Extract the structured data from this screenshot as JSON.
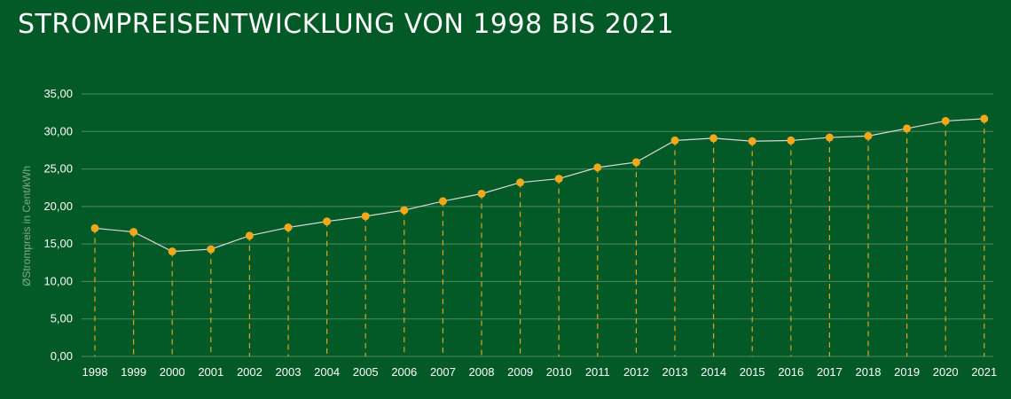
{
  "chart_data": {
    "type": "line",
    "title": "STROMPREISENTWICKLUNG VON 1998 BIS 2021",
    "ylabel": "ØStrompreis in Cent/kWh",
    "xlabel": "",
    "ylim": [
      0,
      35
    ],
    "y_ticks": [
      "0,00",
      "5,00",
      "10,00",
      "15,00",
      "20,00",
      "25,00",
      "30,00",
      "35,00"
    ],
    "y_tick_values": [
      0,
      5,
      10,
      15,
      20,
      25,
      30,
      35
    ],
    "categories": [
      "1998",
      "1999",
      "2000",
      "2001",
      "2002",
      "2003",
      "2004",
      "2005",
      "2006",
      "2007",
      "2008",
      "2009",
      "2010",
      "2011",
      "2012",
      "2013",
      "2014",
      "2015",
      "2016",
      "2017",
      "2018",
      "2019",
      "2020",
      "2021"
    ],
    "series": [
      {
        "values": [
          17.1,
          16.6,
          14.0,
          14.3,
          16.1,
          17.2,
          18.0,
          18.7,
          19.5,
          20.7,
          21.7,
          23.2,
          23.7,
          25.2,
          25.9,
          28.8,
          29.1,
          28.7,
          28.8,
          29.2,
          29.4,
          30.4,
          31.4,
          31.7
        ]
      }
    ],
    "grid": true,
    "colors": {
      "background": "#035a26",
      "grid": "#4f8a64",
      "line": "#d9d9d9",
      "marker": "#f2a81d",
      "dropline": "#d9a520"
    }
  }
}
